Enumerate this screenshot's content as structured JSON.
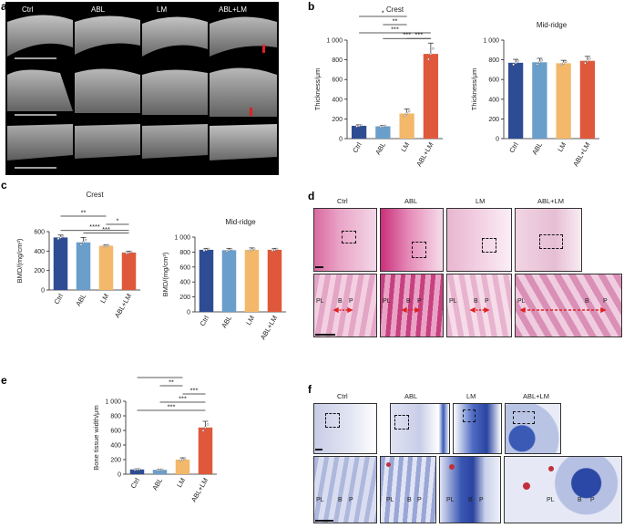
{
  "panels": {
    "a": "a",
    "b": "b",
    "c": "c",
    "d": "d",
    "e": "e",
    "f": "f"
  },
  "groups": [
    "Ctrl",
    "ABL",
    "LM",
    "ABL+LM"
  ],
  "colors": {
    "ctrl": "#2e4c94",
    "abl": "#6a9ecb",
    "lm": "#f3b86a",
    "abllm": "#e0583c"
  },
  "histology_labels": {
    "pl": "PL",
    "b": "B",
    "p": "P"
  },
  "chart_data": [
    {
      "id": "b_crest",
      "type": "bar",
      "title": "Crest",
      "ylabel": "Thickness/μm",
      "categories": [
        "Ctrl",
        "ABL",
        "LM",
        "ABL+LM"
      ],
      "values": [
        130,
        125,
        255,
        860
      ],
      "errors": [
        10,
        8,
        45,
        110
      ],
      "ylim": [
        0,
        1000
      ],
      "ticks": [
        "0",
        "200",
        "400",
        "600",
        "800",
        "1 000"
      ],
      "sig": [
        {
          "from": 0,
          "to": 2,
          "label": "*"
        },
        {
          "from": 1,
          "to": 2,
          "label": "**"
        },
        {
          "from": 0,
          "to": 3,
          "label": "***"
        },
        {
          "from": 1,
          "to": 3,
          "label": "***"
        },
        {
          "from": 2,
          "to": 3,
          "label": "***"
        }
      ]
    },
    {
      "id": "b_mid",
      "type": "bar",
      "title": "Mid-ridge",
      "ylabel": "Thickness/μm",
      "categories": [
        "Ctrl",
        "ABL",
        "LM",
        "ABL+LM"
      ],
      "values": [
        770,
        775,
        765,
        790
      ],
      "errors": [
        35,
        40,
        30,
        45
      ],
      "ylim": [
        0,
        1000
      ],
      "ticks": [
        "0",
        "200",
        "400",
        "600",
        "800",
        "1 000"
      ],
      "sig": []
    },
    {
      "id": "c_crest",
      "type": "bar",
      "title": "Crest",
      "ylabel": "BMD/(mg/cm³)",
      "categories": [
        "Ctrl",
        "ABL",
        "LM",
        "ABL+LM"
      ],
      "values": [
        540,
        490,
        455,
        385
      ],
      "errors": [
        25,
        50,
        10,
        15
      ],
      "ylim": [
        0,
        600
      ],
      "ticks": [
        "0",
        "200",
        "400",
        "600"
      ],
      "sig": [
        {
          "from": 0,
          "to": 2,
          "label": "**"
        },
        {
          "from": 2,
          "to": 3,
          "label": "*"
        },
        {
          "from": 0,
          "to": 3,
          "label": "****"
        },
        {
          "from": 1,
          "to": 3,
          "label": "***"
        }
      ]
    },
    {
      "id": "c_mid",
      "type": "bar",
      "title": "Mid-ridge",
      "ylabel": "BMD/(mg/cm³)",
      "categories": [
        "Ctrl",
        "ABL",
        "LM",
        "ABL+LM"
      ],
      "values": [
        830,
        825,
        830,
        830
      ],
      "errors": [
        20,
        25,
        25,
        20
      ],
      "ylim": [
        0,
        1000
      ],
      "ticks": [
        "0",
        "200",
        "400",
        "600",
        "800",
        "1 000"
      ],
      "sig": []
    },
    {
      "id": "e_width",
      "type": "bar",
      "title": "",
      "ylabel": "Bone tissue width/μm",
      "categories": [
        "Ctrl",
        "ABL",
        "LM",
        "ABL+LM"
      ],
      "values": [
        65,
        60,
        200,
        640
      ],
      "errors": [
        8,
        8,
        25,
        85
      ],
      "ylim": [
        0,
        1000
      ],
      "ticks": [
        "0",
        "200",
        "400",
        "600",
        "800",
        "1 000"
      ],
      "sig": [
        {
          "from": 0,
          "to": 2,
          "label": "**"
        },
        {
          "from": 1,
          "to": 2,
          "label": "**"
        },
        {
          "from": 2,
          "to": 3,
          "label": "***"
        },
        {
          "from": 1,
          "to": 3,
          "label": "***"
        },
        {
          "from": 0,
          "to": 3,
          "label": "***"
        }
      ]
    }
  ]
}
